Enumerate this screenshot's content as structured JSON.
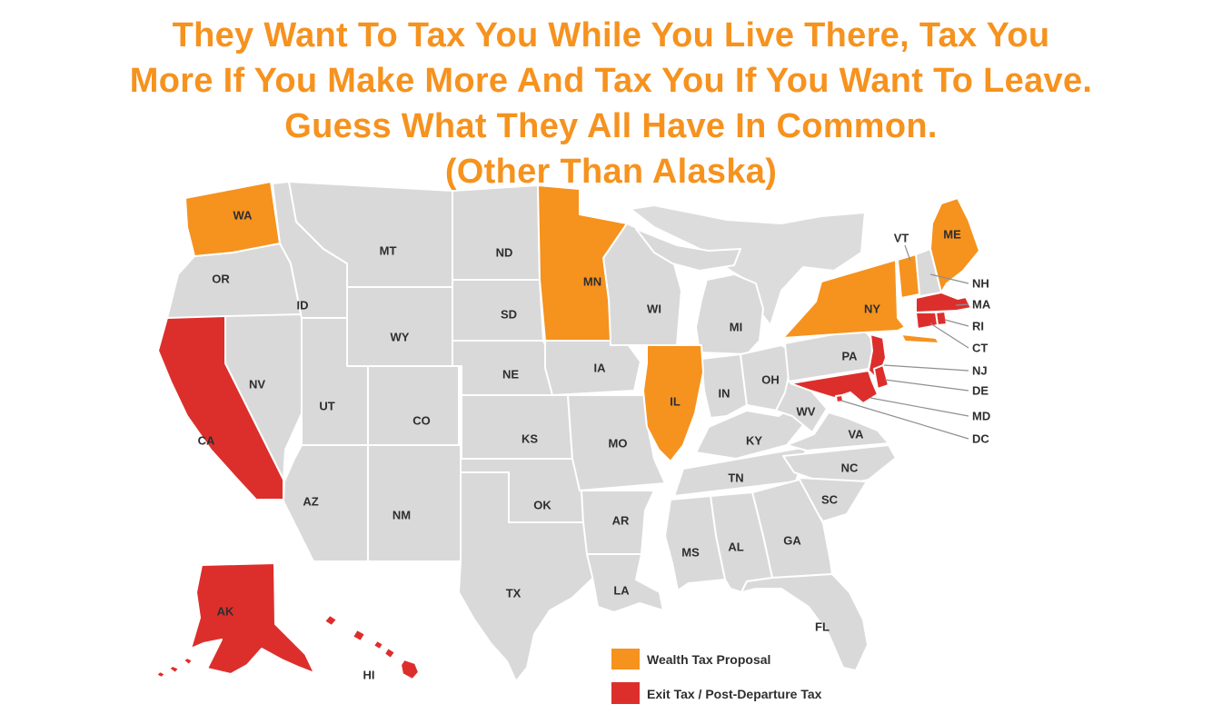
{
  "title": {
    "color": "#F6921E",
    "lines": [
      "They Want To Tax You While You Live There, Tax You",
      "More If You Make More And Tax You If You Want To Leave.",
      "Guess What They All Have In Common.",
      "(Other Than Alaska)"
    ]
  },
  "map": {
    "colors": {
      "wealth": "#F6921E",
      "exit": "#DC2F2C",
      "none": "#D9D9D9",
      "landmass": "#DCDCDC",
      "border": "#FFFFFF",
      "label_text": "#2E2E2E",
      "leader_line": "#8F8F8F"
    },
    "categories": {
      "wealth": {
        "label": "Wealth Tax Proposal",
        "states": [
          "WA",
          "MN",
          "IL",
          "NY",
          "VT",
          "ME"
        ]
      },
      "exit": {
        "label": "Exit Tax / Post-Departure Tax",
        "states": [
          "CA",
          "AK",
          "HI",
          "MA",
          "RI",
          "CT",
          "NJ",
          "DE",
          "MD",
          "DC"
        ]
      },
      "none": {
        "label": "",
        "states": [
          "OR",
          "NV",
          "ID",
          "MT",
          "WY",
          "UT",
          "CO",
          "AZ",
          "NM",
          "ND",
          "SD",
          "NE",
          "KS",
          "OK",
          "TX",
          "IA",
          "MO",
          "AR",
          "LA",
          "WI",
          "MI",
          "IN",
          "OH",
          "KY",
          "TN",
          "WV",
          "VA",
          "NC",
          "SC",
          "GA",
          "AL",
          "MS",
          "FL",
          "PA",
          "NH"
        ]
      }
    },
    "callout_labels": [
      "NH",
      "MA",
      "RI",
      "CT",
      "NJ",
      "DE",
      "MD",
      "DC"
    ],
    "floating_label": "VT"
  },
  "legend": {
    "items": [
      {
        "label": "Wealth Tax Proposal",
        "color": "#F6921E"
      },
      {
        "label": "Exit Tax / Post-Departure Tax",
        "color": "#DC2F2C"
      }
    ]
  }
}
